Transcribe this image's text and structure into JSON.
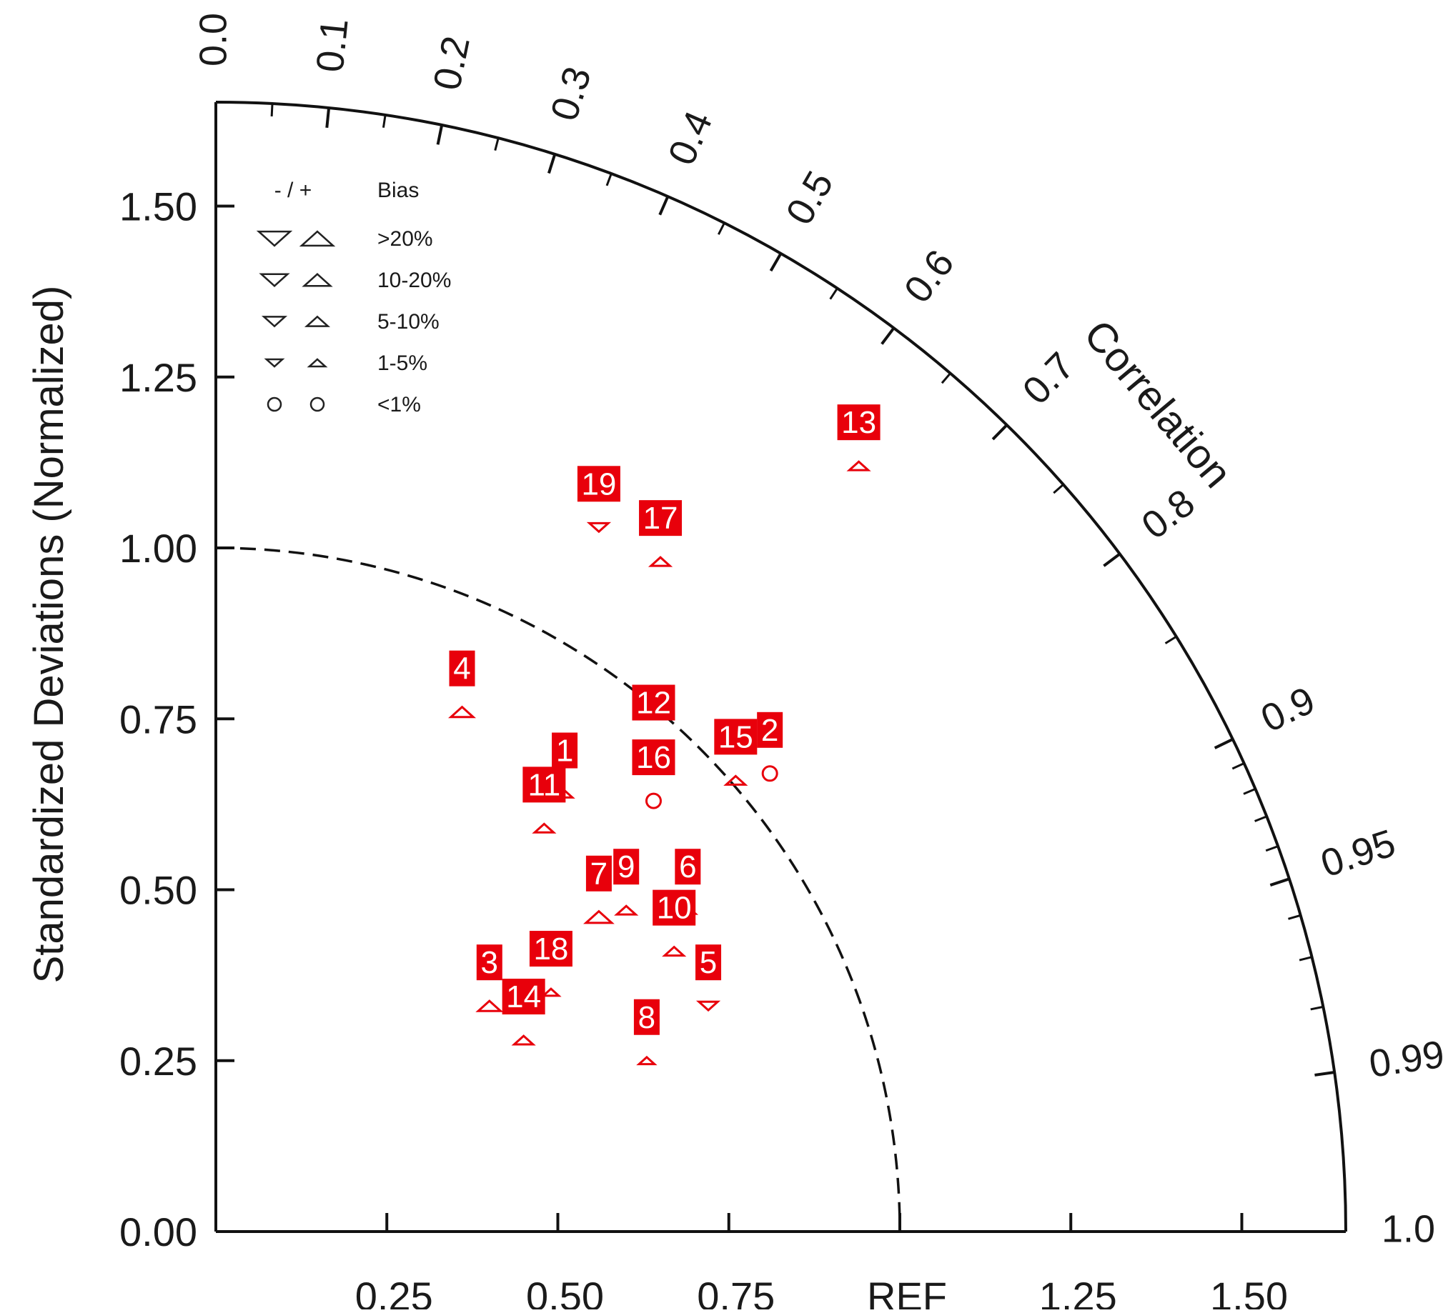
{
  "chart_data": {
    "type": "scatter",
    "subtype": "taylor-diagram",
    "title": "",
    "ylabel": "Standardized Deviations (Normalized)",
    "arc_label": "Correlation",
    "ref_label": "REF",
    "std_range": [
      0,
      1.65
    ],
    "std_ticks": [
      "0.00",
      "0.25",
      "0.50",
      "0.75",
      "1.00",
      "1.25",
      "1.50"
    ],
    "x_tick_labels": [
      "0.25",
      "0.50",
      "0.75",
      "REF",
      "1.25",
      "1.50"
    ],
    "x_tick_values": [
      0.25,
      0.5,
      0.75,
      1.0,
      1.25,
      1.5
    ],
    "correlation_labels": [
      "0.0",
      "0.1",
      "0.2",
      "0.3",
      "0.4",
      "0.5",
      "0.6",
      "0.7",
      "0.8",
      "0.9",
      "0.95",
      "0.99",
      "1.0"
    ],
    "correlation_values": [
      0.0,
      0.1,
      0.2,
      0.3,
      0.4,
      0.5,
      0.6,
      0.7,
      0.8,
      0.9,
      0.95,
      0.99,
      1.0
    ],
    "correlation_minor_ticks": [
      0.05,
      0.15,
      0.25,
      0.35,
      0.45,
      0.55,
      0.65,
      0.75,
      0.85,
      0.91,
      0.92,
      0.93,
      0.94,
      0.96,
      0.97,
      0.98
    ],
    "ref_std": 1.0,
    "marker_color": "#e8000b",
    "legend": {
      "header_symbols": "- / +",
      "header_text": "Bias",
      "rows": [
        {
          "label": ">20%",
          "shape": "triangle",
          "size": 1.0
        },
        {
          "label": "10-20%",
          "shape": "triangle",
          "size": 0.8
        },
        {
          "label": "5-10%",
          "shape": "triangle",
          "size": 0.6
        },
        {
          "label": "1-5%",
          "shape": "triangle",
          "size": 0.4
        },
        {
          "label": "<1%",
          "shape": "circle",
          "size": 0.5
        }
      ]
    },
    "points": [
      {
        "label": "1",
        "x": 0.51,
        "y": 0.64,
        "marker": "up",
        "size": 0.4
      },
      {
        "label": "2",
        "x": 0.81,
        "y": 0.67,
        "marker": "circle",
        "size": 0.5
      },
      {
        "label": "3",
        "x": 0.4,
        "y": 0.33,
        "marker": "up",
        "size": 0.8
      },
      {
        "label": "4",
        "x": 0.36,
        "y": 0.76,
        "marker": "up",
        "size": 0.8
      },
      {
        "label": "5",
        "x": 0.72,
        "y": 0.33,
        "marker": "down",
        "size": 0.6
      },
      {
        "label": "6",
        "x": 0.69,
        "y": 0.47,
        "marker": "up",
        "size": 0.4
      },
      {
        "label": "7",
        "x": 0.56,
        "y": 0.46,
        "marker": "up",
        "size": 1.0
      },
      {
        "label": "8",
        "x": 0.63,
        "y": 0.25,
        "marker": "up",
        "size": 0.4
      },
      {
        "label": "9",
        "x": 0.6,
        "y": 0.47,
        "marker": "up",
        "size": 0.6
      },
      {
        "label": "10",
        "x": 0.67,
        "y": 0.41,
        "marker": "up",
        "size": 0.6
      },
      {
        "label": "11",
        "x": 0.48,
        "y": 0.59,
        "marker": "up",
        "size": 0.6
      },
      {
        "label": "12",
        "x": 0.64,
        "y": 0.71,
        "marker": "up",
        "size": 0.6
      },
      {
        "label": "13",
        "x": 0.94,
        "y": 1.12,
        "marker": "up",
        "size": 0.6
      },
      {
        "label": "14",
        "x": 0.45,
        "y": 0.28,
        "marker": "up",
        "size": 0.6
      },
      {
        "label": "15",
        "x": 0.76,
        "y": 0.66,
        "marker": "up",
        "size": 0.6
      },
      {
        "label": "16",
        "x": 0.64,
        "y": 0.63,
        "marker": "circle",
        "size": 0.5
      },
      {
        "label": "17",
        "x": 0.65,
        "y": 0.98,
        "marker": "up",
        "size": 0.6
      },
      {
        "label": "18",
        "x": 0.49,
        "y": 0.35,
        "marker": "up",
        "size": 0.4
      },
      {
        "label": "19",
        "x": 0.56,
        "y": 1.03,
        "marker": "down",
        "size": 0.6
      }
    ]
  }
}
